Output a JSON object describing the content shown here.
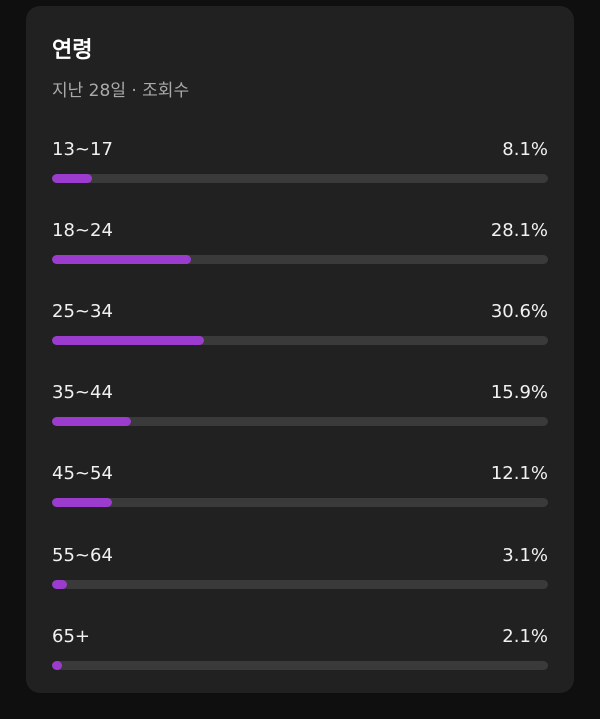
{
  "card": {
    "title": "연령",
    "subtitle": "지난 28일 · 조회수"
  },
  "accent_color": "#9b3ccf",
  "track_color": "#3a3a3a",
  "age_groups": [
    {
      "label": "13~17",
      "value_text": "8.1%",
      "percent": 8.1
    },
    {
      "label": "18~24",
      "value_text": "28.1%",
      "percent": 28.1
    },
    {
      "label": "25~34",
      "value_text": "30.6%",
      "percent": 30.6
    },
    {
      "label": "35~44",
      "value_text": "15.9%",
      "percent": 15.9
    },
    {
      "label": "45~54",
      "value_text": "12.1%",
      "percent": 12.1
    },
    {
      "label": "55~64",
      "value_text": "3.1%",
      "percent": 3.1
    },
    {
      "label": "65+",
      "value_text": "2.1%",
      "percent": 2.1
    }
  ]
}
